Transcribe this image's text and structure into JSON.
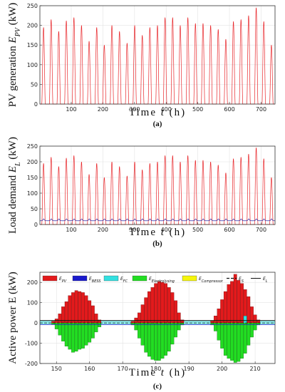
{
  "chart_data": [
    {
      "id": "a",
      "type": "line",
      "panel_label": "(a)",
      "ylabel": "PV generation E_PV (kW)",
      "xlabel": "Time t (h)",
      "xlim": [
        1,
        744
      ],
      "ylim": [
        0,
        250
      ],
      "xticks": [
        100,
        200,
        300,
        400,
        500,
        600,
        700
      ],
      "yticks": [
        0,
        50,
        100,
        150,
        200,
        250
      ],
      "grid": true,
      "series": [
        {
          "color": "#e8262a",
          "daily_peaks": [
            195,
            215,
            185,
            212,
            220,
            200,
            160,
            195,
            150,
            200,
            185,
            155,
            200,
            175,
            195,
            200,
            220,
            220,
            200,
            220,
            205,
            205,
            200,
            190,
            165,
            210,
            215,
            225,
            245,
            210,
            150
          ]
        }
      ]
    },
    {
      "id": "b",
      "type": "line",
      "panel_label": "(b)",
      "ylabel": "Load demand E_L (kW)",
      "xlabel": "Time t (h)",
      "xlim": [
        1,
        744
      ],
      "ylim": [
        0,
        250
      ],
      "xticks": [
        100,
        200,
        300,
        400,
        500,
        600,
        700
      ],
      "yticks": [
        0,
        50,
        100,
        150,
        200,
        250
      ],
      "grid": true,
      "series": [
        {
          "color": "#e8262a",
          "daily_peaks": [
            195,
            215,
            185,
            212,
            220,
            200,
            160,
            195,
            150,
            200,
            185,
            155,
            200,
            175,
            195,
            200,
            220,
            220,
            200,
            220,
            205,
            205,
            200,
            190,
            165,
            210,
            215,
            225,
            245,
            210,
            150
          ]
        },
        {
          "color": "#2a2aa8",
          "base_level": 12,
          "daily_bump": 6
        }
      ]
    },
    {
      "id": "c",
      "type": "bar",
      "panel_label": "(c)",
      "ylabel": "Active power E (kW)",
      "xlabel": "Time t (h)",
      "xlim": [
        145,
        216
      ],
      "ylim": [
        -200,
        250
      ],
      "xticks": [
        150,
        160,
        170,
        180,
        190,
        200,
        210
      ],
      "yticks": [
        -200,
        -100,
        0,
        100,
        200
      ],
      "grid": true,
      "legend": [
        {
          "label": "E_PV",
          "color": "#e31a1c",
          "kind": "box"
        },
        {
          "label": "E_BESS",
          "color": "#1a1acc",
          "kind": "box"
        },
        {
          "label": "E_FC",
          "color": "#33e0e0",
          "kind": "box"
        },
        {
          "label": "E_Electrolysing",
          "color": "#22dd22",
          "kind": "box"
        },
        {
          "label": "E_Compressor",
          "color": "#f5f50a",
          "kind": "box"
        },
        {
          "label": "E_S",
          "color": "#111111",
          "kind": "dash"
        },
        {
          "label": "E_L",
          "color": "#111111",
          "kind": "line"
        }
      ],
      "days": [
        {
          "start": 149,
          "pv": [
            8,
            20,
            45,
            80,
            105,
            135,
            150,
            160,
            155,
            150,
            135,
            110,
            85,
            45,
            15
          ],
          "el": [
            -8,
            -30,
            -60,
            -90,
            -115,
            -130,
            -145,
            -140,
            -130,
            -125,
            -110,
            -95,
            -75,
            -45,
            -20
          ]
        },
        {
          "start": 173,
          "pv": [
            8,
            25,
            50,
            90,
            125,
            155,
            175,
            195,
            205,
            200,
            195,
            175,
            150,
            110,
            50,
            15
          ],
          "el": [
            -10,
            -35,
            -75,
            -110,
            -145,
            -165,
            -180,
            -185,
            -185,
            -175,
            -160,
            -140,
            -105,
            -70,
            -35,
            -10
          ]
        },
        {
          "start": 197,
          "pv": [
            10,
            35,
            70,
            115,
            155,
            190,
            205,
            240,
            210,
            195,
            165,
            130,
            80,
            40,
            15
          ],
          "el": [
            -10,
            -40,
            -85,
            -125,
            -160,
            -175,
            -185,
            -195,
            -190,
            -175,
            -150,
            -110,
            -70,
            -35,
            -10
          ]
        }
      ],
      "fc_peaks": [
        {
          "x": 207,
          "value": 35
        }
      ],
      "bess_level": -8,
      "load_level": 12
    }
  ]
}
